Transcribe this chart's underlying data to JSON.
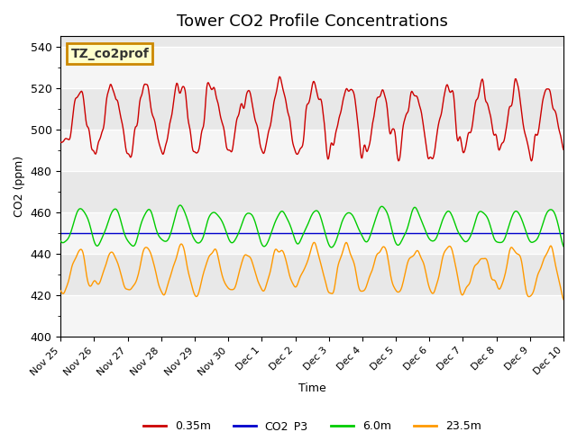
{
  "title": "Tower CO2 Profile Concentrations",
  "xlabel": "Time",
  "ylabel": "CO2 (ppm)",
  "ylim": [
    400,
    545
  ],
  "xlim_days": 15,
  "background_color": "#ffffff",
  "plot_bg_color": "#e8e8e8",
  "grid_color": "#ffffff",
  "annotation_text": "TZ_co2prof",
  "annotation_bg": "#ffffcc",
  "annotation_edge": "#cc8800",
  "series": [
    {
      "label": "0.35m",
      "color": "#cc0000",
      "linewidth": 1.0
    },
    {
      "label": "CO2_P3",
      "color": "#0000cc",
      "linewidth": 1.0
    },
    {
      "label": "6.0m",
      "color": "#00cc00",
      "linewidth": 1.0
    },
    {
      "label": "23.5m",
      "color": "#ff9900",
      "linewidth": 1.0
    }
  ],
  "xtick_labels": [
    "Nov 25",
    "Nov 26",
    "Nov 27",
    "Nov 28",
    "Nov 29",
    "Nov 30",
    "Dec 1",
    "Dec 2",
    "Dec 3",
    "Dec 4",
    "Dec 5",
    "Dec 6",
    "Dec 7",
    "Dec 8",
    "Dec 9",
    "Dec 10"
  ],
  "xtick_positions": [
    0,
    1,
    2,
    3,
    4,
    5,
    6,
    7,
    8,
    9,
    10,
    11,
    12,
    13,
    14,
    15
  ],
  "ytick_labels": [
    "400",
    "420",
    "440",
    "460",
    "480",
    "500",
    "520",
    "540"
  ],
  "ytick_positions": [
    400,
    420,
    440,
    460,
    480,
    500,
    520,
    540
  ],
  "legend_loc": "lower center",
  "legend_ncol": 4,
  "seed": 42
}
